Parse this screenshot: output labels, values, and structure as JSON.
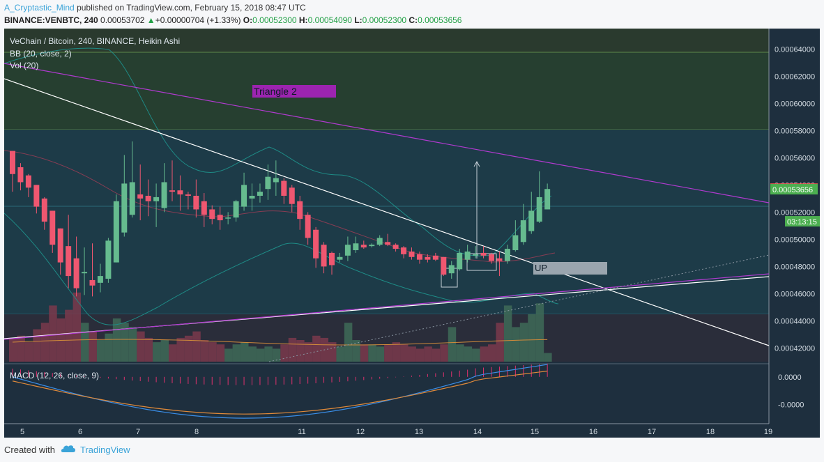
{
  "header": {
    "author": "A_Cryptastic_Mind",
    "published": "published on TradingView.com, February 15, 2018 08:47 UTC",
    "symbol": "BINANCE:VENBTC, 240",
    "last": "0.00053702",
    "change": "+0.00000704 (+1.33%)",
    "o_label": "O:",
    "o": "0.00052300",
    "h_label": "H:",
    "h": "0.00054090",
    "l_label": "L:",
    "l": "0.00052300",
    "c_label": "C:",
    "c": "0.00053656"
  },
  "chart_data": {
    "type": "candlestick",
    "title": "VeChain / Bitcoin, 240, BINANCE, Heikin Ashi",
    "indicators": [
      "BB (20, close, 2)",
      "Vol (20)"
    ],
    "ylim": [
      0.00041,
      0.000655
    ],
    "y_ticks": [
      "0.00064000",
      "0.00062000",
      "0.00060000",
      "0.00058000",
      "0.00056000",
      "0.00054000",
      "0.00052000",
      "0.00050000",
      "0.00048000",
      "0.00046000",
      "0.00044000",
      "0.00042000"
    ],
    "x_ticks": [
      "5",
      "6",
      "7",
      "8",
      "11",
      "12",
      "13",
      "14",
      "15",
      "16",
      "17",
      "18",
      "19"
    ],
    "price_labels": [
      {
        "value": "0.00053702",
        "price": 0.00053702,
        "color": "#ef5350"
      },
      {
        "value": "0.00053656",
        "price": 0.00053656,
        "color": "#4caf50"
      },
      {
        "value": "03:13:15",
        "price": 0.000513,
        "color": "#4caf50"
      }
    ],
    "annotations": [
      {
        "text": "Triangle 2",
        "kind": "label"
      },
      {
        "text": "UP",
        "kind": "label"
      }
    ],
    "candles": [
      {
        "o": 0.000565,
        "h": 0.000565,
        "l": 0.000535,
        "c": 0.000548,
        "v": 0.55
      },
      {
        "o": 0.000553,
        "h": 0.000556,
        "l": 0.000536,
        "c": 0.000542,
        "v": 0.6
      },
      {
        "o": 0.000547,
        "h": 0.000548,
        "l": 0.000531,
        "c": 0.000538,
        "v": 0.45
      },
      {
        "o": 0.00054,
        "h": 0.00054,
        "l": 0.000519,
        "c": 0.000524,
        "v": 0.75
      },
      {
        "o": 0.00053,
        "h": 0.000531,
        "l": 0.000507,
        "c": 0.000513,
        "v": 0.9
      },
      {
        "o": 0.000521,
        "h": 0.000521,
        "l": 0.00049,
        "c": 0.000496,
        "v": 1.3
      },
      {
        "o": 0.000508,
        "h": 0.000508,
        "l": 0.000474,
        "c": 0.000483,
        "v": 1.0
      },
      {
        "o": 0.000495,
        "h": 0.000518,
        "l": 0.000464,
        "c": 0.000473,
        "v": 1.2
      },
      {
        "o": 0.000486,
        "h": 0.000502,
        "l": 0.000458,
        "c": 0.000464,
        "v": 1.6
      },
      {
        "o": 0.000475,
        "h": 0.000494,
        "l": 0.000459,
        "c": 0.000476,
        "v": 0.9
      },
      {
        "o": 0.00047,
        "h": 0.000497,
        "l": 0.000458,
        "c": 0.000466,
        "v": 0.7
      },
      {
        "o": 0.000468,
        "h": 0.000482,
        "l": 0.000461,
        "c": 0.000473,
        "v": 0.5
      },
      {
        "o": 0.000471,
        "h": 0.000501,
        "l": 0.000468,
        "c": 0.000499,
        "v": 0.65
      },
      {
        "o": 0.000483,
        "h": 0.000533,
        "l": 0.000483,
        "c": 0.000528,
        "v": 1.0
      },
      {
        "o": 0.000505,
        "h": 0.000562,
        "l": 0.000502,
        "c": 0.000541,
        "v": 0.9
      },
      {
        "o": 0.000518,
        "h": 0.000572,
        "l": 0.000516,
        "c": 0.000542,
        "v": 0.8
      },
      {
        "o": 0.000533,
        "h": 0.000555,
        "l": 0.000514,
        "c": 0.00053,
        "v": 0.7
      },
      {
        "o": 0.000532,
        "h": 0.000544,
        "l": 0.000517,
        "c": 0.000528,
        "v": 0.55
      },
      {
        "o": 0.000528,
        "h": 0.000541,
        "l": 0.000509,
        "c": 0.000531,
        "v": 0.45
      },
      {
        "o": 0.000523,
        "h": 0.000556,
        "l": 0.00052,
        "c": 0.000542,
        "v": 0.5
      },
      {
        "o": 0.000536,
        "h": 0.000558,
        "l": 0.000528,
        "c": 0.000535,
        "v": 0.4
      },
      {
        "o": 0.000536,
        "h": 0.000547,
        "l": 0.000521,
        "c": 0.000533,
        "v": 0.55
      },
      {
        "o": 0.000533,
        "h": 0.000535,
        "l": 0.000522,
        "c": 0.000532,
        "v": 0.6
      },
      {
        "o": 0.000532,
        "h": 0.000544,
        "l": 0.000516,
        "c": 0.000522,
        "v": 0.7
      },
      {
        "o": 0.000528,
        "h": 0.000534,
        "l": 0.000509,
        "c": 0.000518,
        "v": 0.5
      },
      {
        "o": 0.000522,
        "h": 0.000525,
        "l": 0.000511,
        "c": 0.000515,
        "v": 0.45
      },
      {
        "o": 0.000518,
        "h": 0.000524,
        "l": 0.000507,
        "c": 0.000514,
        "v": 0.4
      },
      {
        "o": 0.000516,
        "h": 0.00052,
        "l": 0.000511,
        "c": 0.000516,
        "v": 0.3
      },
      {
        "o": 0.000516,
        "h": 0.000529,
        "l": 0.000513,
        "c": 0.000528,
        "v": 0.4
      },
      {
        "o": 0.000524,
        "h": 0.000549,
        "l": 0.000521,
        "c": 0.00054,
        "v": 0.45
      },
      {
        "o": 0.00053,
        "h": 0.000541,
        "l": 0.000521,
        "c": 0.000532,
        "v": 0.35
      },
      {
        "o": 0.000532,
        "h": 0.000541,
        "l": 0.000527,
        "c": 0.000535,
        "v": 0.3
      },
      {
        "o": 0.000537,
        "h": 0.000555,
        "l": 0.000529,
        "c": 0.000546,
        "v": 0.35
      },
      {
        "o": 0.000542,
        "h": 0.000558,
        "l": 0.000532,
        "c": 0.000545,
        "v": 0.3
      },
      {
        "o": 0.000543,
        "h": 0.000545,
        "l": 0.000526,
        "c": 0.000532,
        "v": 0.4
      },
      {
        "o": 0.000538,
        "h": 0.00054,
        "l": 0.00052,
        "c": 0.000526,
        "v": 0.55
      },
      {
        "o": 0.000528,
        "h": 0.000532,
        "l": 0.000507,
        "c": 0.000515,
        "v": 0.5
      },
      {
        "o": 0.000518,
        "h": 0.00052,
        "l": 0.000496,
        "c": 0.000501,
        "v": 0.45
      },
      {
        "o": 0.000507,
        "h": 0.000509,
        "l": 0.000479,
        "c": 0.000486,
        "v": 0.6
      },
      {
        "o": 0.000496,
        "h": 0.000498,
        "l": 0.000475,
        "c": 0.00048,
        "v": 0.55
      },
      {
        "o": 0.00049,
        "h": 0.000491,
        "l": 0.000474,
        "c": 0.000481,
        "v": 0.45
      },
      {
        "o": 0.000485,
        "h": 0.00049,
        "l": 0.000483,
        "c": 0.000487,
        "v": 0.35
      },
      {
        "o": 0.000488,
        "h": 0.000502,
        "l": 0.000484,
        "c": 0.000496,
        "v": 0.9
      },
      {
        "o": 0.000492,
        "h": 0.000502,
        "l": 0.00049,
        "c": 0.000497,
        "v": 0.5
      },
      {
        "o": 0.000496,
        "h": 0.000499,
        "l": 0.000493,
        "c": 0.000494,
        "v": 0.4
      },
      {
        "o": 0.000495,
        "h": 0.000497,
        "l": 0.000494,
        "c": 0.000496,
        "v": 0.4
      },
      {
        "o": 0.000496,
        "h": 0.000503,
        "l": 0.000495,
        "c": 0.000501,
        "v": 0.35
      },
      {
        "o": 0.000498,
        "h": 0.000504,
        "l": 0.000495,
        "c": 0.000496,
        "v": 0.4
      },
      {
        "o": 0.000496,
        "h": 0.000497,
        "l": 0.000491,
        "c": 0.000493,
        "v": 0.45
      },
      {
        "o": 0.000494,
        "h": 0.000495,
        "l": 0.000486,
        "c": 0.000489,
        "v": 0.4
      },
      {
        "o": 0.000491,
        "h": 0.000494,
        "l": 0.000485,
        "c": 0.000487,
        "v": 0.35
      },
      {
        "o": 0.000489,
        "h": 0.000491,
        "l": 0.000482,
        "c": 0.000485,
        "v": 0.3
      },
      {
        "o": 0.000487,
        "h": 0.000489,
        "l": 0.000483,
        "c": 0.000485,
        "v": 0.35
      },
      {
        "o": 0.000488,
        "h": 0.00049,
        "l": 0.000484,
        "c": 0.000485,
        "v": 0.3
      },
      {
        "o": 0.000487,
        "h": 0.000487,
        "l": 0.000473,
        "c": 0.000474,
        "v": 0.4
      },
      {
        "o": 0.000475,
        "h": 0.000484,
        "l": 0.000471,
        "c": 0.000481,
        "v": 0.8
      },
      {
        "o": 0.000478,
        "h": 0.000493,
        "l": 0.000477,
        "c": 0.00049,
        "v": 0.4
      },
      {
        "o": 0.000485,
        "h": 0.000496,
        "l": 0.000483,
        "c": 0.000491,
        "v": 0.35
      },
      {
        "o": 0.000488,
        "h": 0.000495,
        "l": 0.000486,
        "c": 0.000489,
        "v": 0.3
      },
      {
        "o": 0.00049,
        "h": 0.000495,
        "l": 0.000486,
        "c": 0.000488,
        "v": 0.35
      },
      {
        "o": 0.000489,
        "h": 0.00049,
        "l": 0.000482,
        "c": 0.000484,
        "v": 0.4
      },
      {
        "o": 0.000486,
        "h": 0.000491,
        "l": 0.000473,
        "c": 0.000484,
        "v": 0.9
      },
      {
        "o": 0.000484,
        "h": 0.000496,
        "l": 0.000482,
        "c": 0.000493,
        "v": 1.3
      },
      {
        "o": 0.000492,
        "h": 0.000514,
        "l": 0.000491,
        "c": 0.000503,
        "v": 0.8
      },
      {
        "o": 0.000498,
        "h": 0.000526,
        "l": 0.000496,
        "c": 0.000514,
        "v": 0.9
      },
      {
        "o": 0.000506,
        "h": 0.000535,
        "l": 0.000504,
        "c": 0.000521,
        "v": 1.1
      },
      {
        "o": 0.000513,
        "h": 0.00055,
        "l": 0.000512,
        "c": 0.000531,
        "v": 1.35
      },
      {
        "o": 0.000522,
        "h": 0.000541,
        "l": 0.000522,
        "c": 0.000537,
        "v": 0.2
      }
    ],
    "macd": {
      "label": "MACD (12, 26, close, 9)",
      "ylim": [
        -3.4e-05,
        8e-06
      ],
      "y_ticks": [
        "0.0000",
        "-0.0000"
      ]
    }
  },
  "footer": {
    "created_with": "Created with",
    "brand": "TradingView"
  },
  "colors": {
    "bg": "#1e2f3e",
    "up": "#66bb8f",
    "down": "#ef5770",
    "bb_line": "#26a69a",
    "trendline": "#ffffff",
    "magenta": "#b13ad0",
    "green_zone": "#3d5a3b",
    "text": "#dfe7ee"
  }
}
